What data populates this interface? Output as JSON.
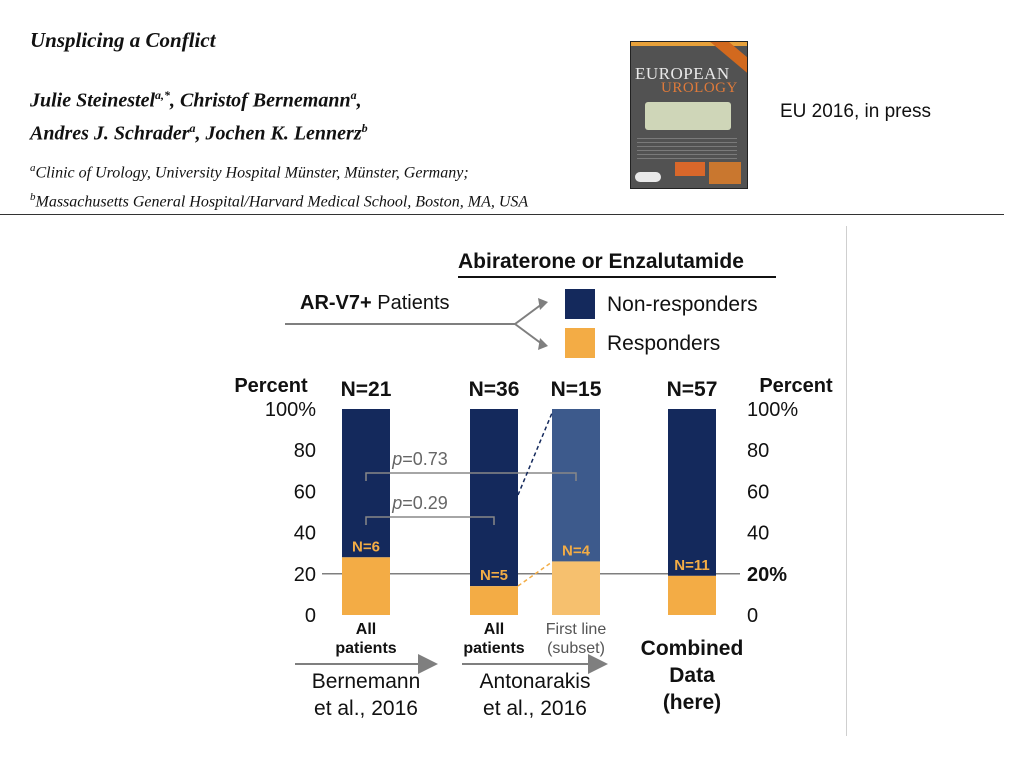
{
  "header": {
    "paper_title": "Unsplicing a Conflict",
    "authors_line1": [
      {
        "name": "Julie Steinestel",
        "sup": "a,*"
      },
      {
        "name": ", Christof Bernemann",
        "sup": "a"
      },
      {
        "name": ",",
        "sup": ""
      }
    ],
    "authors_line2": [
      {
        "name": "Andres J. Schrader",
        "sup": "a"
      },
      {
        "name": ", Jochen K. Lennerz",
        "sup": "b"
      }
    ],
    "affiliations": [
      {
        "sup": "a",
        "text": "Clinic of Urology, University Hospital Münster, Münster, Germany;"
      },
      {
        "sup": "b",
        "text": "Massachusetts General Hospital/Harvard Medical School, Boston, MA, USA"
      }
    ],
    "journal_cover": {
      "line1": "EUROPEAN",
      "line2": "UROLOGY"
    },
    "press_note": "EU 2016, in press"
  },
  "chart_data": {
    "type": "bar",
    "stacked": true,
    "legend_title": "Abiraterone or Enzalutamide",
    "arrow_label": "AR-V7+ Patients",
    "legend_placement": "top-right",
    "categories": [
      "All patients",
      "All patients",
      "First line (subset)",
      "Combined Data (here)"
    ],
    "category_labels": [
      [
        "All",
        "patients"
      ],
      [
        "All",
        "patients"
      ],
      [
        "First line",
        "(subset)"
      ],
      [
        "Combined",
        "Data",
        "(here)"
      ]
    ],
    "n_totals": [
      "N=21",
      "N=36",
      "N=15",
      "N=57"
    ],
    "series": [
      {
        "name": "Responders",
        "values": [
          28,
          14,
          26,
          19
        ],
        "n_labels": [
          "N=6",
          "N=5",
          "N=4",
          "N=11"
        ]
      },
      {
        "name": "Non-responders",
        "values": [
          72,
          86,
          74,
          81
        ]
      }
    ],
    "colors": {
      "non_responders": "#14295c",
      "responders": "#f3ac45",
      "non_responders_subset": "#3d5a8c",
      "responders_subset": "#f6c06e",
      "reference_line": "#7f7f7f"
    },
    "ylabel_left": "Percent",
    "ylabel_right": "Percent",
    "yticks_left": [
      "0",
      "20",
      "40",
      "60",
      "80",
      "100%"
    ],
    "yticks_right": [
      "0",
      "20%",
      "40",
      "60",
      "80",
      "100%"
    ],
    "ylim": [
      0,
      100
    ],
    "reference_line": 20,
    "pvalues": [
      {
        "label": "p=0.73",
        "from_bar": 0,
        "to_bar": 2
      },
      {
        "label": "p=0.29",
        "from_bar": 0,
        "to_bar": 1
      }
    ],
    "groups": [
      {
        "label": [
          "Bernemann",
          "et al., 2016"
        ],
        "bars": [
          0
        ]
      },
      {
        "label": [
          "Antonarakis",
          "et al., 2016"
        ],
        "bars": [
          1,
          2
        ]
      }
    ]
  }
}
